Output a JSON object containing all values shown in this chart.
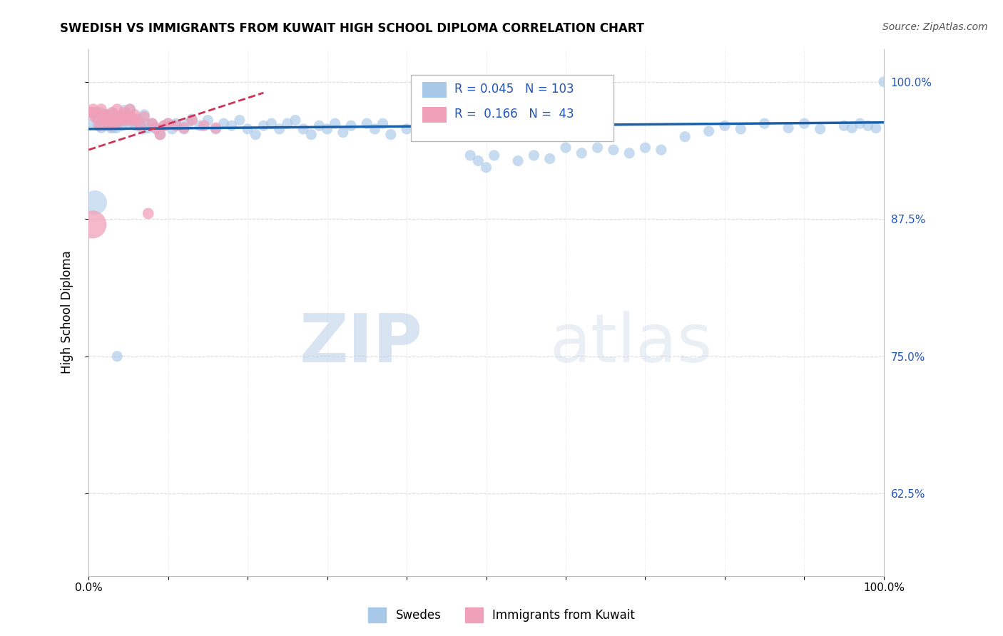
{
  "title": "SWEDISH VS IMMIGRANTS FROM KUWAIT HIGH SCHOOL DIPLOMA CORRELATION CHART",
  "source": "Source: ZipAtlas.com",
  "ylabel": "High School Diploma",
  "watermark_zip": "ZIP",
  "watermark_atlas": "atlas",
  "legend_blue_r": "0.045",
  "legend_blue_n": "103",
  "legend_pink_r": "0.166",
  "legend_pink_n": "43",
  "legend_label_blue": "Swedes",
  "legend_label_pink": "Immigrants from Kuwait",
  "xlim": [
    0.0,
    1.0
  ],
  "ylim": [
    0.55,
    1.03
  ],
  "yticks": [
    0.625,
    0.75,
    0.875,
    1.0
  ],
  "ytick_labels": [
    "62.5%",
    "75.0%",
    "87.5%",
    "100.0%"
  ],
  "xticks": [
    0.0,
    0.1,
    0.2,
    0.3,
    0.4,
    0.5,
    0.6,
    0.7,
    0.8,
    0.9,
    1.0
  ],
  "xtick_labels": [
    "0.0%",
    "",
    "",
    "",
    "",
    "",
    "",
    "",
    "",
    "",
    "100.0%"
  ],
  "blue_color": "#a8c8e8",
  "pink_color": "#f0a0b8",
  "trend_blue_color": "#1a5faa",
  "trend_pink_color": "#cc3355",
  "grid_color": "#dddddd",
  "blue_scatter_x": [
    0.005,
    0.01,
    0.015,
    0.018,
    0.02,
    0.022,
    0.025,
    0.028,
    0.03,
    0.032,
    0.035,
    0.038,
    0.04,
    0.042,
    0.045,
    0.048,
    0.05,
    0.052,
    0.055,
    0.058,
    0.06,
    0.062,
    0.065,
    0.068,
    0.07,
    0.072,
    0.075,
    0.08,
    0.085,
    0.09,
    0.095,
    0.1,
    0.105,
    0.11,
    0.115,
    0.12,
    0.125,
    0.13,
    0.14,
    0.15,
    0.16,
    0.17,
    0.18,
    0.19,
    0.2,
    0.21,
    0.22,
    0.23,
    0.24,
    0.25,
    0.26,
    0.27,
    0.28,
    0.29,
    0.3,
    0.31,
    0.32,
    0.33,
    0.35,
    0.36,
    0.37,
    0.38,
    0.4,
    0.42,
    0.43,
    0.44,
    0.45,
    0.46,
    0.48,
    0.49,
    0.5,
    0.51,
    0.52,
    0.54,
    0.56,
    0.58,
    0.6,
    0.62,
    0.64,
    0.66,
    0.68,
    0.7,
    0.72,
    0.75,
    0.78,
    0.8,
    0.82,
    0.85,
    0.88,
    0.9,
    0.92,
    0.95,
    0.96,
    0.97,
    0.98,
    0.99,
    1.0,
    0.012,
    0.016,
    0.021,
    0.026,
    0.031,
    0.036
  ],
  "blue_scatter_y": [
    0.962,
    0.968,
    0.972,
    0.966,
    0.96,
    0.97,
    0.964,
    0.958,
    0.972,
    0.966,
    0.958,
    0.962,
    0.966,
    0.96,
    0.974,
    0.968,
    0.962,
    0.975,
    0.966,
    0.961,
    0.96,
    0.966,
    0.961,
    0.957,
    0.97,
    0.962,
    0.958,
    0.962,
    0.957,
    0.952,
    0.96,
    0.962,
    0.957,
    0.962,
    0.96,
    0.957,
    0.962,
    0.966,
    0.96,
    0.965,
    0.957,
    0.962,
    0.96,
    0.965,
    0.957,
    0.952,
    0.96,
    0.962,
    0.957,
    0.962,
    0.965,
    0.957,
    0.952,
    0.96,
    0.957,
    0.962,
    0.954,
    0.96,
    0.962,
    0.957,
    0.962,
    0.952,
    0.957,
    0.962,
    0.96,
    0.965,
    0.957,
    0.952,
    0.933,
    0.928,
    0.922,
    0.933,
    0.96,
    0.928,
    0.933,
    0.93,
    0.94,
    0.935,
    0.94,
    0.938,
    0.935,
    0.94,
    0.938,
    0.95,
    0.955,
    0.96,
    0.957,
    0.962,
    0.958,
    0.962,
    0.957,
    0.96,
    0.958,
    0.962,
    0.96,
    0.958,
    1.0,
    0.96,
    0.958,
    0.962,
    0.96,
    0.958,
    0.75
  ],
  "pink_scatter_x": [
    0.003,
    0.006,
    0.008,
    0.01,
    0.012,
    0.014,
    0.016,
    0.018,
    0.02,
    0.022,
    0.024,
    0.026,
    0.028,
    0.03,
    0.032,
    0.034,
    0.036,
    0.038,
    0.04,
    0.042,
    0.044,
    0.046,
    0.048,
    0.05,
    0.052,
    0.054,
    0.056,
    0.058,
    0.06,
    0.065,
    0.07,
    0.075,
    0.08,
    0.085,
    0.09,
    0.095,
    0.1,
    0.11,
    0.12,
    0.13,
    0.145,
    0.16,
    0.005
  ],
  "pink_scatter_y": [
    0.972,
    0.975,
    0.968,
    0.972,
    0.965,
    0.96,
    0.975,
    0.97,
    0.968,
    0.965,
    0.97,
    0.965,
    0.96,
    0.972,
    0.966,
    0.962,
    0.975,
    0.968,
    0.965,
    0.97,
    0.965,
    0.972,
    0.968,
    0.965,
    0.975,
    0.968,
    0.965,
    0.97,
    0.965,
    0.96,
    0.968,
    0.88,
    0.962,
    0.958,
    0.952,
    0.96,
    0.962,
    0.96,
    0.958,
    0.965,
    0.96,
    0.958,
    0.972
  ],
  "blue_trendline_x": [
    0.0,
    1.0
  ],
  "blue_trendline_y": [
    0.957,
    0.963
  ],
  "pink_trendline_x": [
    0.0,
    0.22
  ],
  "pink_trendline_y": [
    0.938,
    0.99
  ]
}
